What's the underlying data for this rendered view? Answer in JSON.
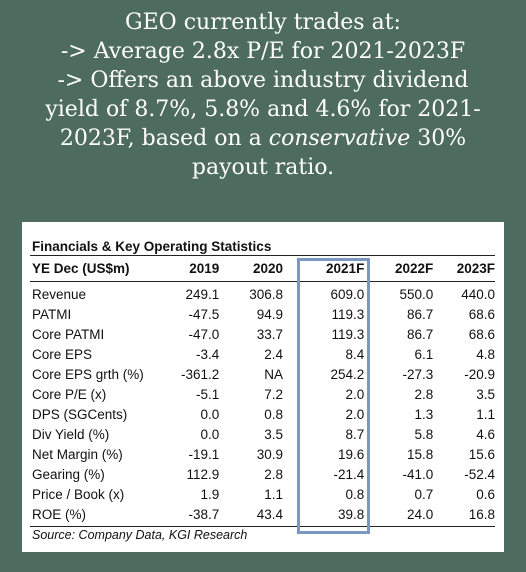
{
  "headline": {
    "line1": "GEO currently trades at:",
    "line2": "-> Average 2.8x P/E for 2021-2023F",
    "line3": "-> Offers an above industry dividend",
    "line4": "yield of 8.7%, 5.8% and 4.6% for 2021-",
    "line5_pre": "2023F, based on a ",
    "line5_em": "conservative",
    "line5_post": " 30%",
    "line6": "payout ratio."
  },
  "table": {
    "title": "Financials & Key Operating Statistics",
    "columns": [
      "YE Dec (US$m)",
      "2019",
      "2020",
      "2021F",
      "2022F",
      "2023F"
    ],
    "highlighted_column": "2021F",
    "rows": [
      {
        "label": "Revenue",
        "values": [
          "249.1",
          "306.8",
          "609.0",
          "550.0",
          "440.0"
        ]
      },
      {
        "label": "PATMI",
        "values": [
          "-47.5",
          "94.9",
          "119.3",
          "86.7",
          "68.6"
        ]
      },
      {
        "label": "Core PATMI",
        "values": [
          "-47.0",
          "33.7",
          "119.3",
          "86.7",
          "68.6"
        ]
      },
      {
        "label": "Core EPS",
        "values": [
          "-3.4",
          "2.4",
          "8.4",
          "6.1",
          "4.8"
        ]
      },
      {
        "label": "Core EPS grth (%)",
        "values": [
          "-361.2",
          "NA",
          "254.2",
          "-27.3",
          "-20.9"
        ]
      },
      {
        "label": "Core P/E (x)",
        "values": [
          "-5.1",
          "7.2",
          "2.0",
          "2.8",
          "3.5"
        ]
      },
      {
        "label": "DPS (SGCents)",
        "values": [
          "0.0",
          "0.8",
          "2.0",
          "1.3",
          "1.1"
        ]
      },
      {
        "label": "Div Yield (%)",
        "values": [
          "0.0",
          "3.5",
          "8.7",
          "5.8",
          "4.6"
        ]
      },
      {
        "label": "Net Margin (%)",
        "values": [
          "-19.1",
          "30.9",
          "19.6",
          "15.8",
          "15.6"
        ]
      },
      {
        "label": "Gearing (%)",
        "values": [
          "112.9",
          "2.8",
          "-21.4",
          "-41.0",
          "-52.4"
        ]
      },
      {
        "label": "Price / Book (x)",
        "values": [
          "1.9",
          "1.1",
          "0.8",
          "0.7",
          "0.6"
        ]
      },
      {
        "label": "ROE (%)",
        "values": [
          "-38.7",
          "43.4",
          "39.8",
          "24.0",
          "16.8"
        ]
      }
    ],
    "source": "Source: Company Data, KGI Research"
  },
  "colors": {
    "background": "#4d6b5f",
    "highlight_border": "#7c97c0"
  }
}
